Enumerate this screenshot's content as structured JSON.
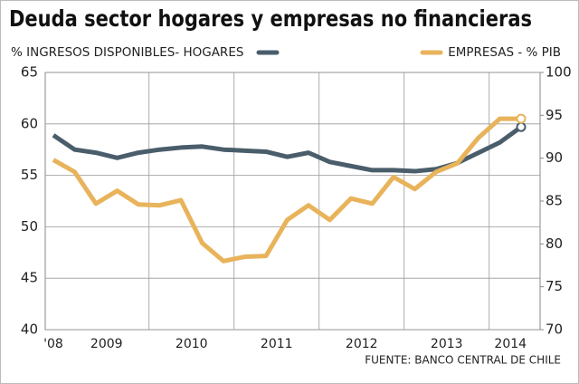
{
  "chart_data": {
    "type": "line",
    "title": "Deuda sector hogares y empresas no financieras",
    "source": "FUENTE: BANCO CENTRAL DE CHILE",
    "categories": [
      "'08",
      null,
      "2009",
      null,
      null,
      null,
      "2010",
      null,
      null,
      null,
      "2011",
      null,
      null,
      null,
      "2012",
      null,
      null,
      null,
      "2013",
      null,
      null,
      "2014",
      null
    ],
    "series": [
      {
        "name": "% INGRESOS DISPONIBLES- HOGARES",
        "color": "#4a5d6b",
        "values": [
          58.9,
          57.5,
          57.2,
          56.7,
          57.2,
          57.5,
          57.7,
          57.8,
          57.5,
          57.4,
          57.3,
          56.8,
          57.2,
          56.3,
          55.9,
          55.5,
          55.5,
          55.4,
          55.6,
          56.2,
          57.2,
          58.2,
          59.7
        ]
      },
      {
        "name": "EMPRESAS - % PIB",
        "color": "#e8b35a",
        "axis": "y2",
        "values": [
          89.8,
          88.4,
          84.7,
          86.2,
          84.6,
          84.5,
          85.1,
          80.1,
          78.0,
          78.5,
          78.6,
          82.8,
          84.5,
          82.8,
          85.3,
          84.7,
          87.8,
          86.4,
          88.4,
          89.4,
          92.4,
          94.6,
          94.6
        ]
      }
    ],
    "ylim": [
      40,
      65
    ],
    "yticks": [
      40,
      45,
      50,
      55,
      60,
      65
    ],
    "y2lim": [
      70,
      100
    ],
    "y2ticks": [
      70,
      75,
      80,
      85,
      90,
      95,
      100
    ],
    "grid": true
  }
}
